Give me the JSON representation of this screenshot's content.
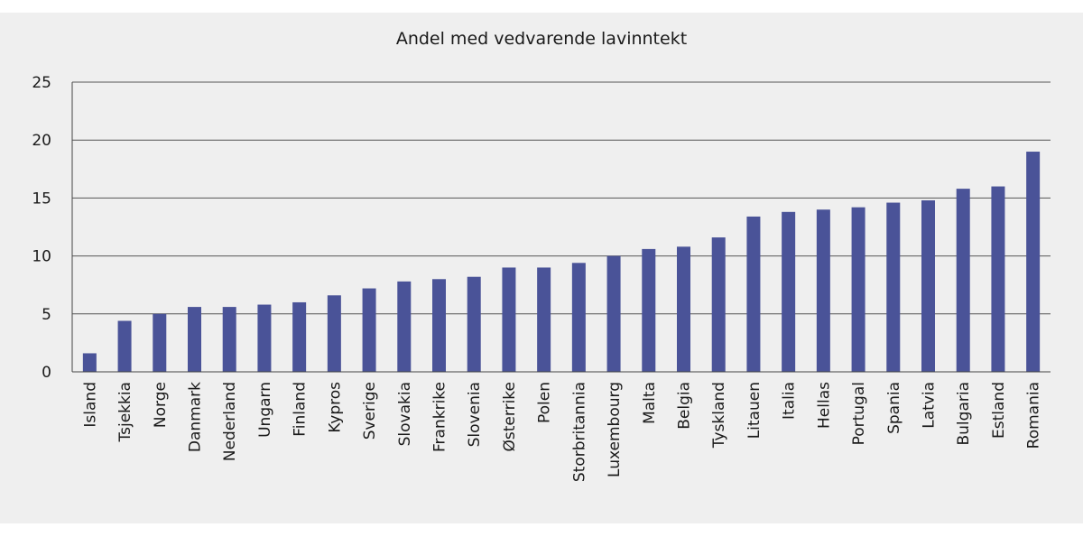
{
  "chart_data": {
    "type": "bar",
    "title": "Andel med vedvarende lavinntekt",
    "xlabel": "",
    "ylabel": "",
    "ylim": [
      0,
      25
    ],
    "yticks": [
      0,
      5,
      10,
      15,
      20,
      25
    ],
    "grid": true,
    "legend": "none",
    "bar_color": "#4a5398",
    "categories": [
      "Island",
      "Tsjekkia",
      "Norge",
      "Danmark",
      "Nederland",
      "Ungarn",
      "Finland",
      "Kypros",
      "Sverige",
      "Slovakia",
      "Frankrike",
      "Slovenia",
      "Østerrike",
      "Polen",
      "Storbritannia",
      "Luxembourg",
      "Malta",
      "Belgia",
      "Tyskland",
      "Litauen",
      "Italia",
      "Hellas",
      "Portugal",
      "Spania",
      "Latvia",
      "Bulgaria",
      "Estland",
      "Romania"
    ],
    "values": [
      1.6,
      4.4,
      5.0,
      5.6,
      5.6,
      5.8,
      6.0,
      6.6,
      7.2,
      7.8,
      8.0,
      8.2,
      9.0,
      9.0,
      9.4,
      10.0,
      10.6,
      10.8,
      11.6,
      13.4,
      13.8,
      14.0,
      14.2,
      14.6,
      14.8,
      15.8,
      16.0,
      19.0
    ]
  }
}
